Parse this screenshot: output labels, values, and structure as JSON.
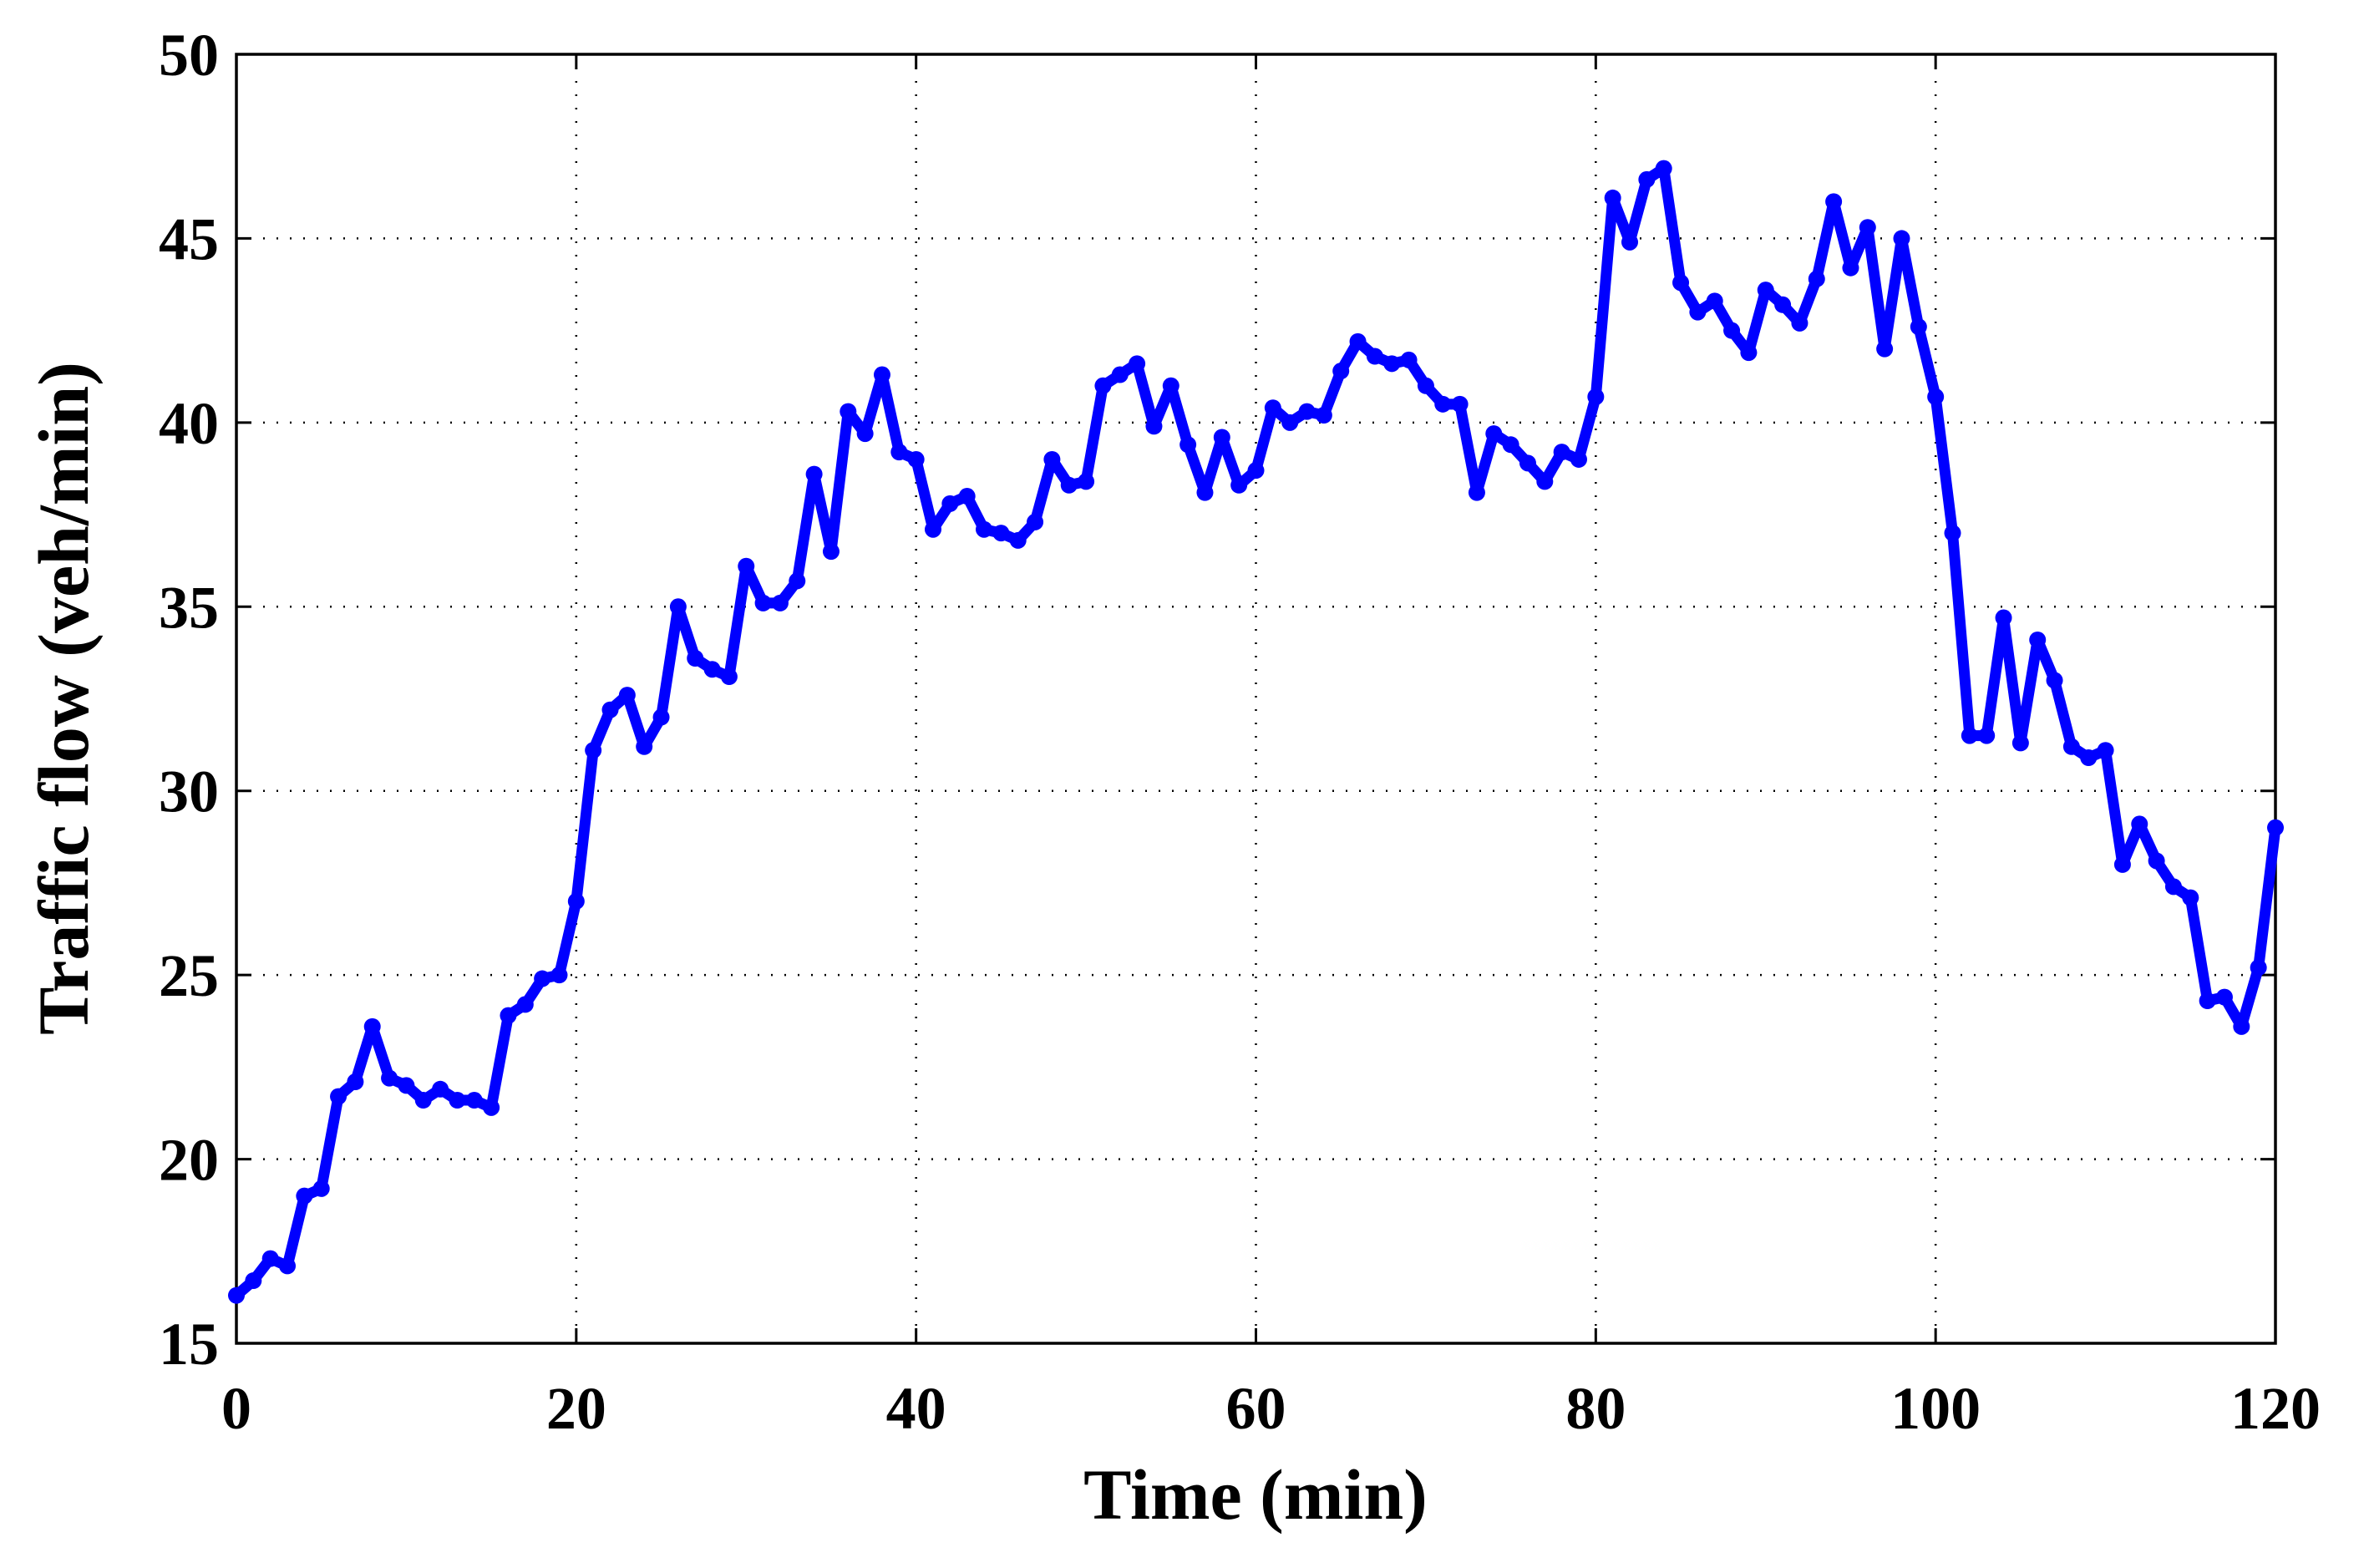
{
  "chart_data": {
    "type": "line",
    "x_label": "Time (min)",
    "y_label": "Traffic flow (veh/min)",
    "xlim": [
      0,
      120
    ],
    "xticks": [
      0,
      20,
      40,
      60,
      80,
      100,
      120
    ],
    "ylim": [
      15,
      50
    ],
    "yticks": [
      15,
      20,
      25,
      30,
      35,
      40,
      45,
      50
    ],
    "grid": true,
    "x": [
      0,
      1,
      2,
      3,
      4,
      5,
      6,
      7,
      8,
      9,
      10,
      11,
      12,
      13,
      14,
      15,
      16,
      17,
      18,
      19,
      20,
      21,
      22,
      23,
      24,
      25,
      26,
      27,
      28,
      29,
      30,
      31,
      32,
      33,
      34,
      35,
      36,
      37,
      38,
      39,
      40,
      41,
      42,
      43,
      44,
      45,
      46,
      47,
      48,
      49,
      50,
      51,
      52,
      53,
      54,
      55,
      56,
      57,
      58,
      59,
      60,
      61,
      62,
      63,
      64,
      65,
      66,
      67,
      68,
      69,
      70,
      71,
      72,
      73,
      74,
      75,
      76,
      77,
      78,
      79,
      80,
      81,
      82,
      83,
      84,
      85,
      86,
      87,
      88,
      89,
      90,
      91,
      92,
      93,
      94,
      95,
      96,
      97,
      98,
      99,
      100,
      101,
      102,
      103,
      104,
      105,
      106,
      107,
      108,
      109,
      110,
      111,
      112,
      113,
      114,
      115,
      116,
      117,
      118,
      119,
      120
    ],
    "series": [
      {
        "color": "#0000ff",
        "values": [
          16.3,
          16.7,
          17.3,
          17.1,
          19.0,
          19.2,
          21.7,
          22.1,
          23.6,
          22.2,
          22.0,
          21.6,
          21.9,
          21.6,
          21.6,
          21.4,
          23.9,
          24.2,
          24.9,
          25.0,
          27.0,
          31.1,
          32.2,
          32.6,
          31.2,
          32.0,
          35.0,
          33.6,
          33.3,
          33.1,
          36.1,
          35.1,
          35.1,
          35.7,
          38.6,
          36.5,
          40.3,
          39.7,
          41.3,
          39.2,
          39.0,
          37.1,
          37.8,
          38.0,
          37.1,
          37.0,
          36.8,
          37.3,
          39.0,
          38.3,
          38.4,
          41.0,
          41.3,
          41.6,
          39.9,
          41.0,
          39.4,
          38.1,
          39.6,
          38.3,
          38.7,
          40.4,
          40.0,
          40.3,
          40.2,
          41.4,
          42.2,
          41.8,
          41.6,
          41.7,
          41.0,
          40.5,
          40.5,
          38.1,
          39.7,
          39.4,
          38.9,
          38.4,
          39.2,
          39.0,
          40.7,
          46.1,
          44.9,
          46.6,
          46.9,
          43.8,
          43.0,
          43.3,
          42.5,
          41.9,
          43.6,
          43.2,
          42.7,
          43.9,
          46.0,
          44.2,
          45.3,
          42.0,
          45.0,
          42.6,
          40.7,
          37.0,
          31.5,
          31.5,
          34.7,
          31.3,
          34.1,
          33.0,
          31.2,
          30.9,
          31.1,
          28.0,
          29.1,
          28.1,
          27.4,
          27.1,
          24.3,
          24.4,
          23.6,
          25.2,
          29.0
        ]
      }
    ]
  }
}
